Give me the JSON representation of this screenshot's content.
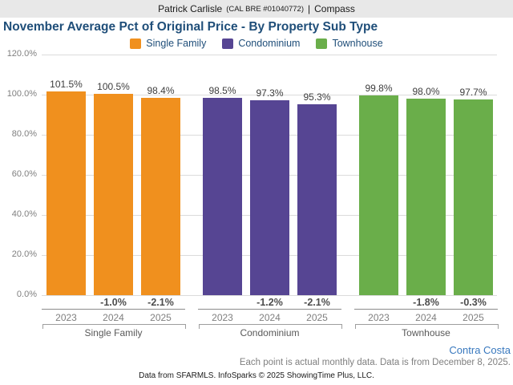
{
  "header": {
    "agent_name": "Patrick Carlisle",
    "license": "(CAL BRE #01040772)",
    "separator": "|",
    "brokerage": "Compass"
  },
  "title": "November Average Pct of Original Price - By Property Sub Type",
  "legend": [
    {
      "label": "Single Family",
      "color": "#f0901e"
    },
    {
      "label": "Condominium",
      "color": "#564593"
    },
    {
      "label": "Townhouse",
      "color": "#6aae4a"
    }
  ],
  "chart_data": {
    "type": "bar",
    "title": "November Average Pct of Original Price - By Property Sub Type",
    "categories": [
      "2023",
      "2024",
      "2025"
    ],
    "series": [
      {
        "name": "Single Family",
        "color": "#f0901e",
        "values": [
          101.5,
          100.5,
          98.4
        ],
        "value_labels": [
          "101.5%",
          "100.5%",
          "98.4%"
        ],
        "change_labels": [
          "",
          "-1.0%",
          "-2.1%"
        ]
      },
      {
        "name": "Condominium",
        "color": "#564593",
        "values": [
          98.5,
          97.3,
          95.3
        ],
        "value_labels": [
          "98.5%",
          "97.3%",
          "95.3%"
        ],
        "change_labels": [
          "",
          "-1.2%",
          "-2.1%"
        ]
      },
      {
        "name": "Townhouse",
        "color": "#6aae4a",
        "values": [
          99.8,
          98.0,
          97.7
        ],
        "value_labels": [
          "99.8%",
          "98.0%",
          "97.7%"
        ],
        "change_labels": [
          "",
          "-1.8%",
          "-0.3%"
        ]
      }
    ],
    "xlabel": "",
    "ylabel": "",
    "ylim": [
      0,
      120
    ],
    "y_ticks": [
      "0.0%",
      "20.0%",
      "40.0%",
      "60.0%",
      "80.0%",
      "100.0%",
      "120.0%"
    ],
    "y_tick_values": [
      0,
      20,
      40,
      60,
      80,
      100,
      120
    ],
    "grid": true,
    "legend_position": "top"
  },
  "footer": {
    "region": "Contra Costa",
    "note": "Each point is actual monthly data. Data is from December 8, 2025.",
    "credit": "Data from SFARMLS. InfoSparks © 2025 ShowingTime Plus, LLC."
  },
  "colors": {
    "header_background": "#e8e8e8",
    "title_text": "#1f4e79",
    "gridline": "#dbdbdb",
    "axis_text": "#7f7f7f",
    "region_link": "#3878be"
  }
}
